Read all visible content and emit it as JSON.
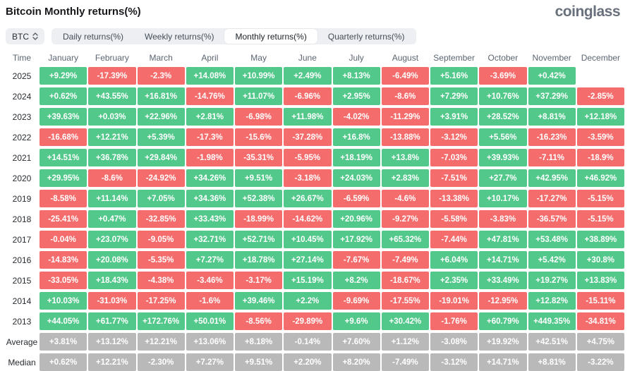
{
  "page": {
    "title": "Bitcoin Monthly returns(%)",
    "logo": "coinglass"
  },
  "controls": {
    "coin_selector": {
      "label": "BTC",
      "icon": "updown-icon"
    },
    "tabs": [
      {
        "label": "Daily returns(%)",
        "active": false
      },
      {
        "label": "Weekly returns(%)",
        "active": false
      },
      {
        "label": "Monthly returns(%)",
        "active": true
      },
      {
        "label": "Quarterly returns(%)",
        "active": false
      }
    ]
  },
  "colors": {
    "positive_cell": "#53c88b",
    "negative_cell": "#f56c6c",
    "summary_cell": "#b9b9b9",
    "header_text": "#5b6571",
    "logo_text": "#68707c"
  },
  "chart_data": {
    "type": "heatmap",
    "title": "Bitcoin Monthly returns(%)",
    "time_header": "Time",
    "columns": [
      "January",
      "February",
      "March",
      "April",
      "May",
      "June",
      "July",
      "August",
      "September",
      "October",
      "November",
      "December"
    ],
    "rows": [
      {
        "label": "2025",
        "type": "year",
        "values": [
          "+9.29%",
          "-17.39%",
          "-2.3%",
          "+14.08%",
          "+10.99%",
          "+2.49%",
          "+8.13%",
          "-6.49%",
          "+5.16%",
          "-3.69%",
          "+0.42%",
          ""
        ]
      },
      {
        "label": "2024",
        "type": "year",
        "values": [
          "+0.62%",
          "+43.55%",
          "+16.81%",
          "-14.76%",
          "+11.07%",
          "-6.96%",
          "+2.95%",
          "-8.6%",
          "+7.29%",
          "+10.76%",
          "+37.29%",
          "-2.85%"
        ]
      },
      {
        "label": "2023",
        "type": "year",
        "values": [
          "+39.63%",
          "+0.03%",
          "+22.96%",
          "+2.81%",
          "-6.98%",
          "+11.98%",
          "-4.02%",
          "-11.29%",
          "+3.91%",
          "+28.52%",
          "+8.81%",
          "+12.18%"
        ]
      },
      {
        "label": "2022",
        "type": "year",
        "values": [
          "-16.68%",
          "+12.21%",
          "+5.39%",
          "-17.3%",
          "-15.6%",
          "-37.28%",
          "+16.8%",
          "-13.88%",
          "-3.12%",
          "+5.56%",
          "-16.23%",
          "-3.59%"
        ]
      },
      {
        "label": "2021",
        "type": "year",
        "values": [
          "+14.51%",
          "+36.78%",
          "+29.84%",
          "-1.98%",
          "-35.31%",
          "-5.95%",
          "+18.19%",
          "+13.8%",
          "-7.03%",
          "+39.93%",
          "-7.11%",
          "-18.9%"
        ]
      },
      {
        "label": "2020",
        "type": "year",
        "values": [
          "+29.95%",
          "-8.6%",
          "-24.92%",
          "+34.26%",
          "+9.51%",
          "-3.18%",
          "+24.03%",
          "+2.83%",
          "-7.51%",
          "+27.7%",
          "+42.95%",
          "+46.92%"
        ]
      },
      {
        "label": "2019",
        "type": "year",
        "values": [
          "-8.58%",
          "+11.14%",
          "+7.05%",
          "+34.36%",
          "+52.38%",
          "+26.67%",
          "-6.59%",
          "-4.6%",
          "-13.38%",
          "+10.17%",
          "-17.27%",
          "-5.15%"
        ]
      },
      {
        "label": "2018",
        "type": "year",
        "values": [
          "-25.41%",
          "+0.47%",
          "-32.85%",
          "+33.43%",
          "-18.99%",
          "-14.62%",
          "+20.96%",
          "-9.27%",
          "-5.58%",
          "-3.83%",
          "-36.57%",
          "-5.15%"
        ]
      },
      {
        "label": "2017",
        "type": "year",
        "values": [
          "-0.04%",
          "+23.07%",
          "-9.05%",
          "+32.71%",
          "+52.71%",
          "+10.45%",
          "+17.92%",
          "+65.32%",
          "-7.44%",
          "+47.81%",
          "+53.48%",
          "+38.89%"
        ]
      },
      {
        "label": "2016",
        "type": "year",
        "values": [
          "-14.83%",
          "+20.08%",
          "-5.35%",
          "+7.27%",
          "+18.78%",
          "+27.14%",
          "-7.67%",
          "-7.49%",
          "+6.04%",
          "+14.71%",
          "+5.42%",
          "+30.8%"
        ]
      },
      {
        "label": "2015",
        "type": "year",
        "values": [
          "-33.05%",
          "+18.43%",
          "-4.38%",
          "-3.46%",
          "-3.17%",
          "+15.19%",
          "+8.2%",
          "-18.67%",
          "+2.35%",
          "+33.49%",
          "+19.27%",
          "+13.83%"
        ]
      },
      {
        "label": "2014",
        "type": "year",
        "values": [
          "+10.03%",
          "-31.03%",
          "-17.25%",
          "-1.6%",
          "+39.46%",
          "+2.2%",
          "-9.69%",
          "-17.55%",
          "-19.01%",
          "-12.95%",
          "+12.82%",
          "-15.11%"
        ]
      },
      {
        "label": "2013",
        "type": "year",
        "values": [
          "+44.05%",
          "+61.77%",
          "+172.76%",
          "+50.01%",
          "-8.56%",
          "-29.89%",
          "+9.6%",
          "+30.42%",
          "-1.76%",
          "+60.79%",
          "+449.35%",
          "-34.81%"
        ]
      },
      {
        "label": "Average",
        "type": "summary",
        "values": [
          "+3.81%",
          "+13.12%",
          "+12.21%",
          "+13.06%",
          "+8.18%",
          "-0.14%",
          "+7.60%",
          "+1.12%",
          "-3.08%",
          "+19.92%",
          "+42.51%",
          "+4.75%"
        ]
      },
      {
        "label": "Median",
        "type": "summary",
        "values": [
          "+0.62%",
          "+12.21%",
          "-2.30%",
          "+7.27%",
          "+9.51%",
          "+2.20%",
          "+8.20%",
          "-7.49%",
          "-3.12%",
          "+14.71%",
          "+8.81%",
          "-3.22%"
        ]
      }
    ],
    "legend": "green = positive monthly return, red = negative monthly return, gray = summary rows"
  }
}
